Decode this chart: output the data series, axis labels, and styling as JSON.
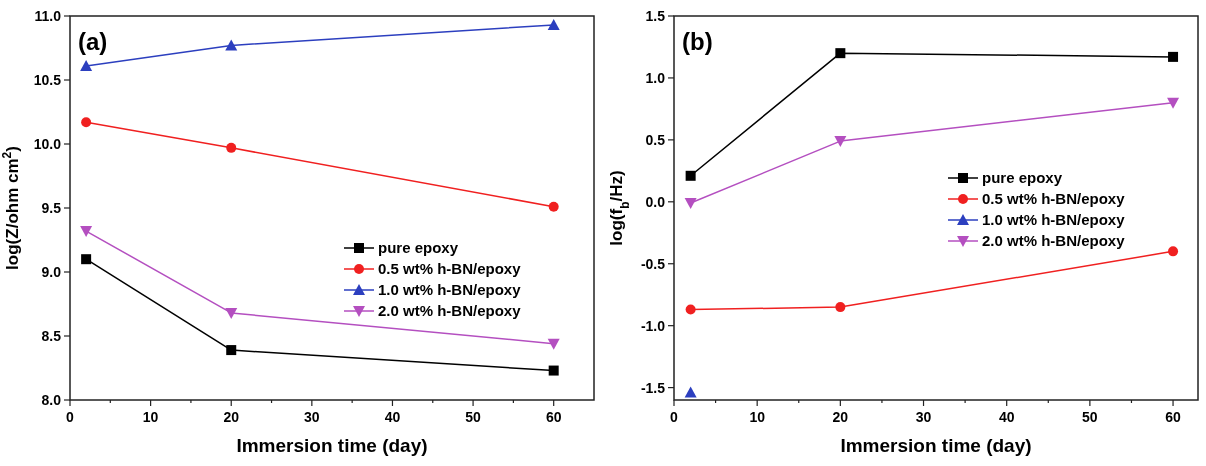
{
  "chart_data": [
    {
      "type": "line",
      "xlabel": "Immersion time (day)",
      "ylabel": "log(Z/ohm cm$^{2}$)",
      "annotations": [
        "(a)"
      ],
      "x": [
        2,
        20,
        60
      ],
      "xlim": [
        0,
        65
      ],
      "xticks": [
        0,
        {
          "value": 5,
          "label": null
        },
        10,
        {
          "value": 15,
          "label": null
        },
        20,
        {
          "value": 25,
          "label": null
        },
        30,
        {
          "value": 35,
          "label": null
        },
        40,
        {
          "value": 45,
          "label": null
        },
        50,
        {
          "value": 55,
          "label": null
        },
        60
      ],
      "ylim": [
        8,
        11
      ],
      "yticks": [
        {
          "value": 8,
          "label": "8.0"
        },
        8.5,
        {
          "value": 9,
          "label": "9.0"
        },
        9.5,
        {
          "value": 10,
          "label": "10.0"
        },
        10.5,
        {
          "value": 11,
          "label": "11.0"
        }
      ],
      "legend": "right",
      "grid": false,
      "line_style": "solid",
      "series": [
        {
          "name": "pure epoxy",
          "color": "#000000",
          "marker": "square",
          "values": [
            9.1,
            8.39,
            8.23
          ]
        },
        {
          "name": "0.5 wt% h-BN/epoxy",
          "color": "#f02020",
          "marker": "circle",
          "values": [
            10.17,
            9.97,
            9.51
          ]
        },
        {
          "name": "1.0 wt% h-BN/epoxy",
          "color": "#2c3fbf",
          "marker": "triangle",
          "values": [
            10.61,
            10.77,
            10.93
          ]
        },
        {
          "name": "2.0 wt% h-BN/epoxy",
          "color": "#b44fc0",
          "marker": "triangle-down",
          "values": [
            9.32,
            8.68,
            8.44
          ]
        }
      ]
    },
    {
      "type": "line",
      "xlabel": "Immersion time (day)",
      "ylabel": "log(f$_{b}$/Hz)",
      "annotations": [
        "(b)"
      ],
      "x": [
        2,
        20,
        60
      ],
      "xlim": [
        0,
        63
      ],
      "xticks": [
        0,
        {
          "value": 5,
          "label": null
        },
        10,
        {
          "value": 15,
          "label": null
        },
        20,
        {
          "value": 25,
          "label": null
        },
        30,
        {
          "value": 35,
          "label": null
        },
        40,
        {
          "value": 45,
          "label": null
        },
        50,
        {
          "value": 55,
          "label": null
        },
        60
      ],
      "ylim": [
        -1.6,
        1.5
      ],
      "yticks": [
        -1.5,
        {
          "value": -1,
          "label": "-1.0"
        },
        -0.5,
        {
          "value": 0,
          "label": "0.0"
        },
        0.5,
        {
          "value": 1,
          "label": "1.0"
        },
        1.5
      ],
      "legend": "right",
      "grid": false,
      "line_style": "solid",
      "series": [
        {
          "name": "pure epoxy",
          "color": "#000000",
          "marker": "square",
          "values": [
            0.21,
            1.2,
            1.17
          ]
        },
        {
          "name": "0.5 wt% h-BN/epoxy",
          "color": "#f02020",
          "marker": "circle",
          "values": [
            -0.87,
            -0.85,
            -0.4
          ]
        },
        {
          "name": "1.0 wt% h-BN/epoxy",
          "color": "#2c3fbf",
          "marker": "triangle",
          "values": [
            -1.54,
            null,
            null
          ]
        },
        {
          "name": "2.0 wt% h-BN/epoxy",
          "color": "#b44fc0",
          "marker": "triangle-down",
          "values": [
            -0.01,
            0.49,
            0.8
          ]
        }
      ]
    }
  ]
}
